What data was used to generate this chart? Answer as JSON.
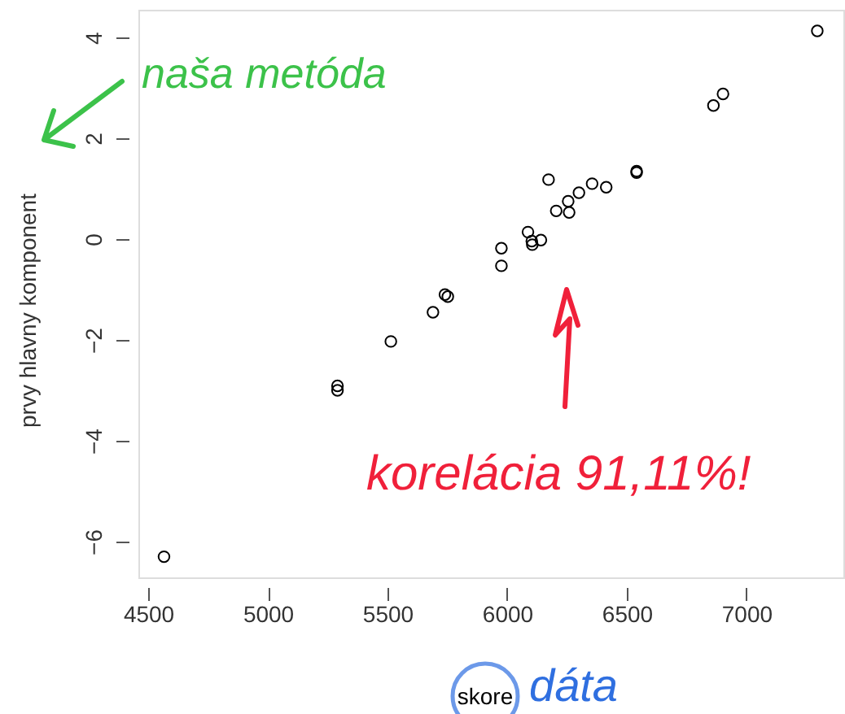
{
  "chart_data": {
    "type": "scatter",
    "xlabel": "skore",
    "ylabel": "prvy hlavny komponent",
    "x": [
      7296,
      6902,
      6862,
      6541,
      6541,
      6173,
      6355,
      6414,
      6300,
      6255,
      6205,
      6259,
      6087,
      6141,
      6105,
      6103,
      5976,
      5976,
      5740,
      5752,
      5690,
      5514,
      5291,
      5291,
      4566
    ],
    "values": [
      4.13,
      2.88,
      2.65,
      1.35,
      1.32,
      1.18,
      1.1,
      1.03,
      0.92,
      0.75,
      0.56,
      0.53,
      0.14,
      -0.02,
      -0.11,
      -0.04,
      -0.18,
      -0.53,
      -1.1,
      -1.14,
      -1.45,
      -2.03,
      -2.91,
      -3.0,
      -6.3
    ],
    "color": "#000000",
    "marker": "circle",
    "grid": false,
    "xlim": [
      4459,
      7405
    ],
    "ylim": [
      -6.71,
      4.55
    ],
    "xticks": [
      4500,
      5000,
      5500,
      6000,
      6500,
      7000
    ],
    "yticks": [
      -6,
      -4,
      -2,
      0,
      2,
      4
    ],
    "annotations": [
      "naša metóda",
      "korelácia 91,11%!",
      "dáta"
    ]
  }
}
